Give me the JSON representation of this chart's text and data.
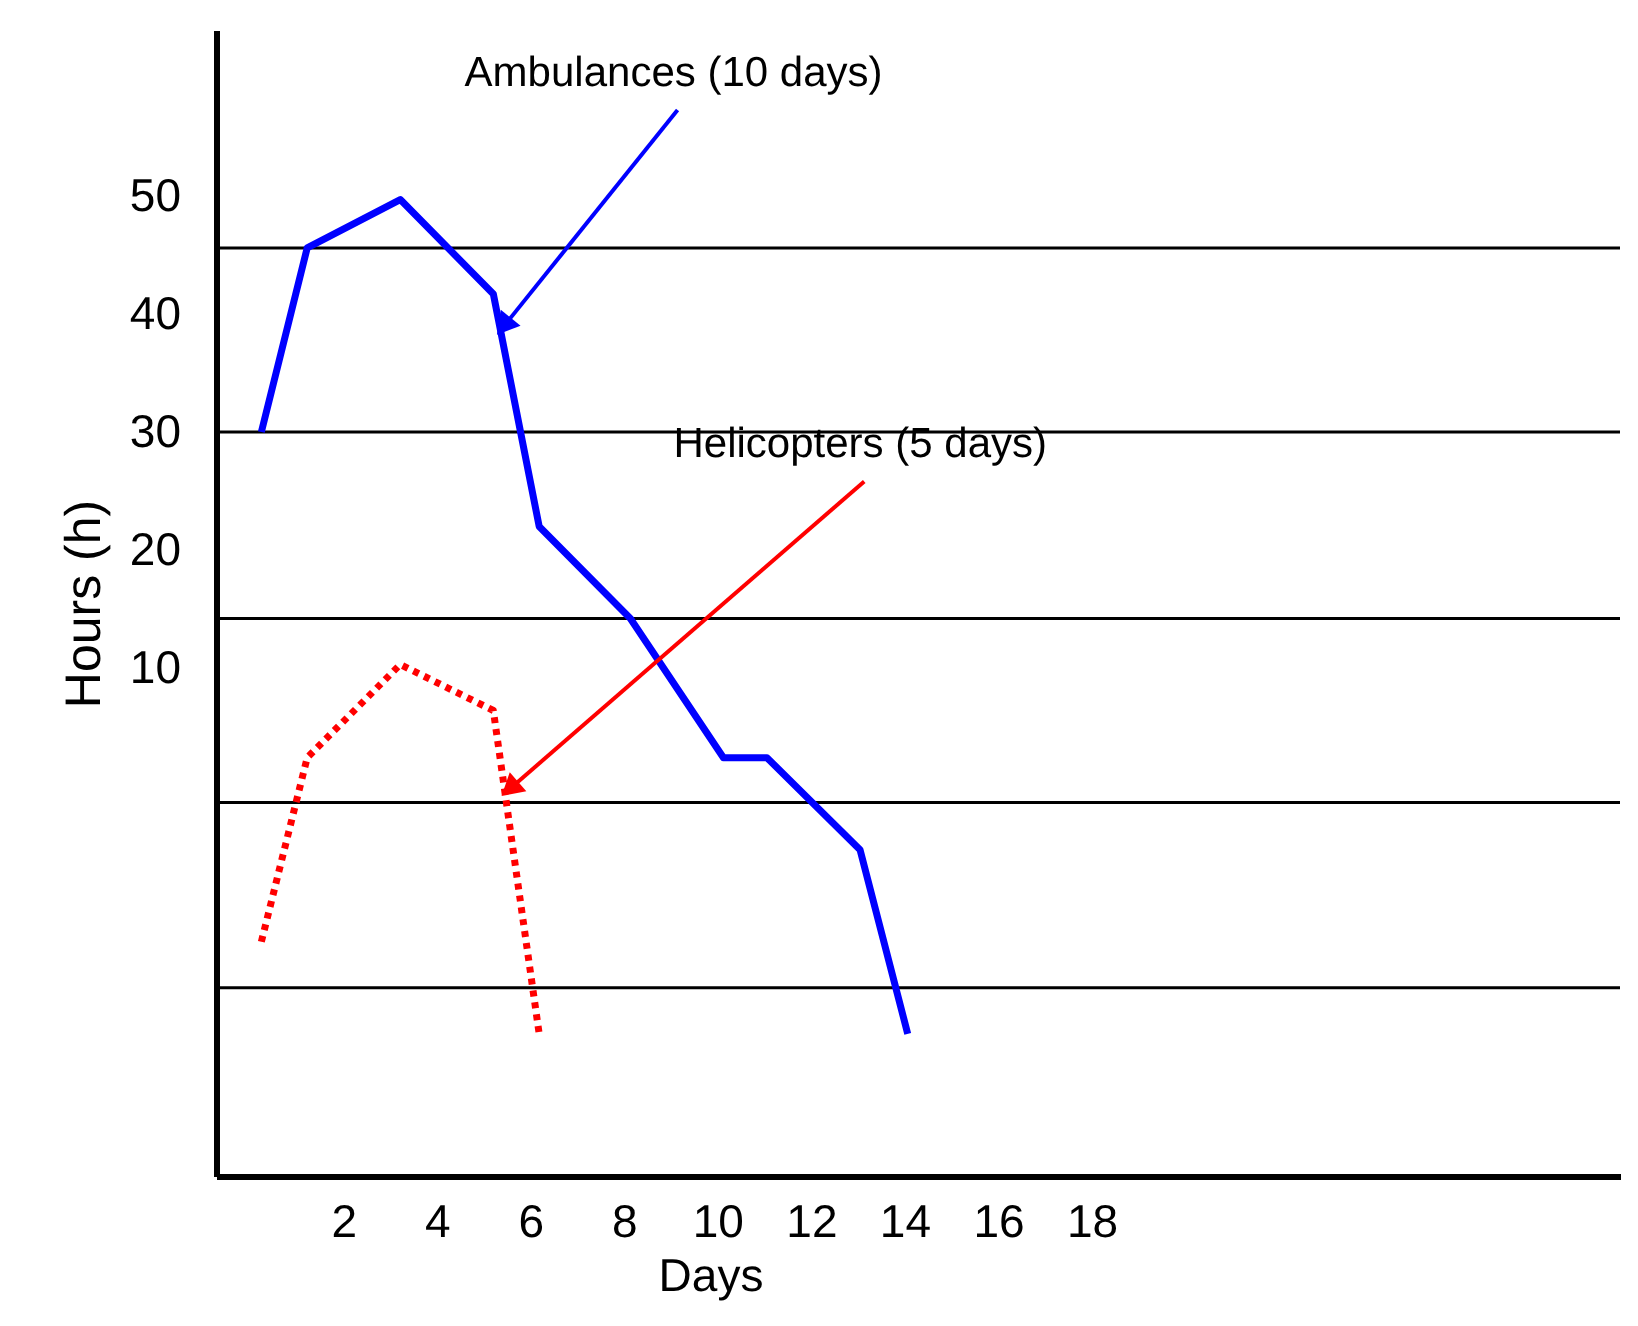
{
  "chart_data": {
    "type": "line",
    "xlabel": "Days",
    "ylabel": "Hours (h)",
    "xlim": [
      -0.72,
      29.3
    ],
    "ylim": [
      -33.05,
      64.07
    ],
    "xticks": [
      2,
      4,
      6,
      8,
      10,
      12,
      14,
      16,
      18
    ],
    "yticks": [
      10,
      20,
      30,
      40,
      50
    ],
    "grid": false,
    "marker": "none",
    "series": [
      {
        "color": "#0000ff",
        "line_style": "solid",
        "x": [
          0.25,
          1.23,
          3.22,
          5.21,
          6.19,
          8.14,
          10.13,
          11.06,
          13.05,
          14.07
        ],
        "values": [
          30,
          45.6,
          49.7,
          41.7,
          22,
          14.2,
          2.4,
          2.4,
          -5.4,
          -21
        ]
      },
      {
        "color": "#ff0000",
        "line_style": "dotted",
        "x": [
          0.25,
          1.23,
          3.22,
          5.21,
          6.19
        ],
        "values": [
          -13.2,
          2.4,
          10.3,
          6.4,
          -21
        ]
      }
    ],
    "ref_lines": [
      {
        "axis": "y",
        "value": 45.6,
        "color": "#000000"
      },
      {
        "axis": "y",
        "value": 30,
        "color": "#000000"
      },
      {
        "axis": "y",
        "value": 14.2,
        "color": "#000000"
      },
      {
        "axis": "y",
        "value": -1.4,
        "color": "#000000"
      },
      {
        "axis": "y",
        "value": -17.1,
        "color": "#000000"
      }
    ],
    "annotations": [
      {
        "text": "Ambulances (10 days)",
        "x": 5.3,
        "y": 38.3
      },
      {
        "text": "Helicopters (5 days)",
        "x": 5.4,
        "y": -0.8
      }
    ]
  }
}
